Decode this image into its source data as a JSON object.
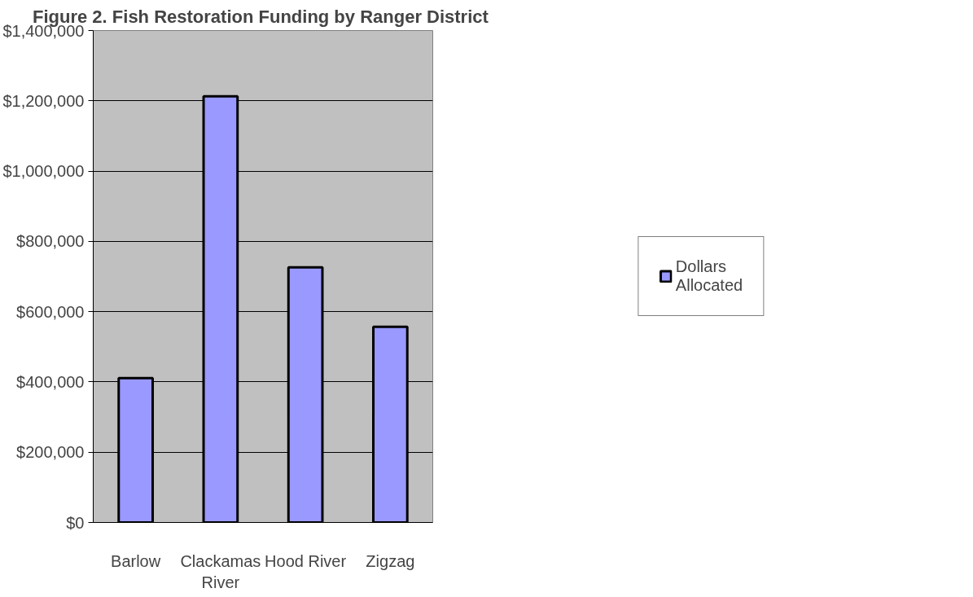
{
  "chart_data": {
    "type": "bar",
    "title": "Figure 2.  Fish Restoration Funding by Ranger District",
    "categories": [
      "Barlow",
      "Clackamas River",
      "Hood River",
      "Zigzag"
    ],
    "series": [
      {
        "name": "Dollars Allocated",
        "color": "#9999ff",
        "values": [
          411000,
          1213000,
          726000,
          557000
        ]
      }
    ],
    "ylim": [
      0,
      1400000
    ],
    "yticks": [
      {
        "value": 0,
        "label": "$0"
      },
      {
        "value": 200000,
        "label": "$200,000"
      },
      {
        "value": 400000,
        "label": "$400,000"
      },
      {
        "value": 600000,
        "label": "$600,000"
      },
      {
        "value": 800000,
        "label": "$800,000"
      },
      {
        "value": 1000000,
        "label": "$1,000,000"
      },
      {
        "value": 1200000,
        "label": "$1,200,000"
      },
      {
        "value": 1400000,
        "label": "$1,400,000"
      }
    ],
    "grid": "y",
    "legend": "right"
  }
}
